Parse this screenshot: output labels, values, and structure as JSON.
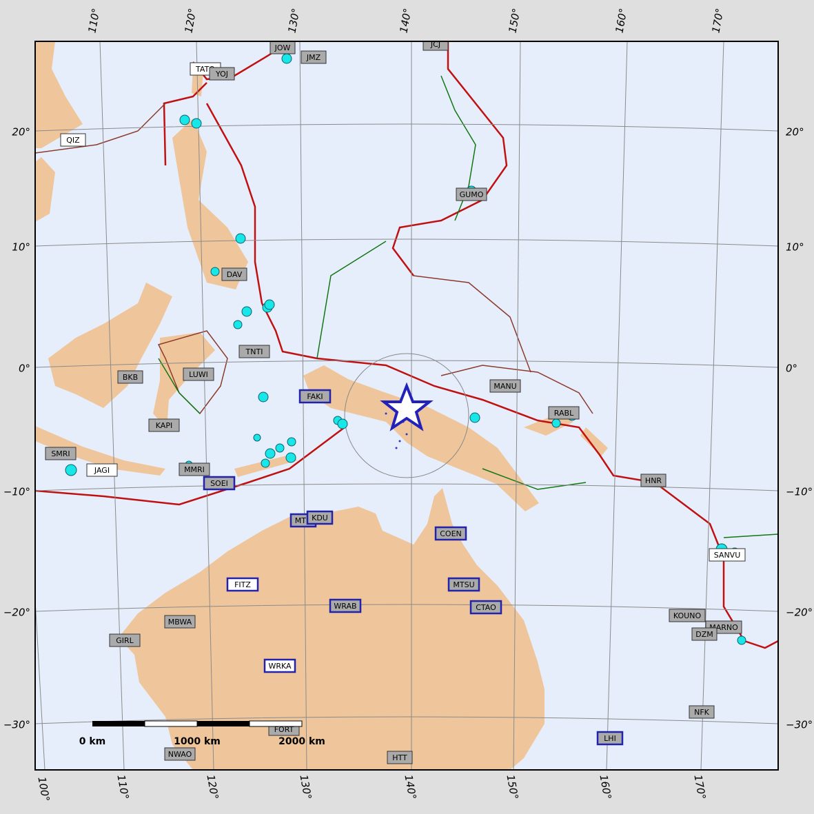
{
  "map": {
    "lon_labels_top": [
      "110°",
      "120°",
      "130°",
      "140°",
      "150°",
      "160°",
      "170°"
    ],
    "lon_labels_bottom": [
      "100°",
      "110°",
      "120°",
      "130°",
      "140°",
      "150°",
      "160°",
      "170°"
    ],
    "lat_labels_left": [
      "20°",
      "10°",
      "0°",
      "−10°",
      "−20°",
      "−30°"
    ],
    "lat_labels_right": [
      "20°",
      "10°",
      "0°",
      "−10°",
      "−20°",
      "−30°"
    ],
    "stations": [
      "JOW",
      "JMZ",
      "JCJ",
      "TATO",
      "YOJ",
      "QIZ",
      "GUMO",
      "DAV",
      "TNTI",
      "BKB",
      "LUWI",
      "FAKI",
      "MANU",
      "RABL",
      "KAPI",
      "SMRI",
      "JAGI",
      "MMRI",
      "SOEI",
      "HNR",
      "MTN",
      "KDU",
      "COEN",
      "SANVU",
      "FITZ",
      "MTSU",
      "WRAB",
      "CTAO",
      "KOUNO",
      "MBWA",
      "GIRL",
      "MARNO",
      "DZM",
      "WRKA",
      "NFK",
      "FORT",
      "HTT",
      "LHI",
      "NWAO"
    ],
    "scale_labels": [
      "0 km",
      "1000 km",
      "2000 km"
    ]
  }
}
